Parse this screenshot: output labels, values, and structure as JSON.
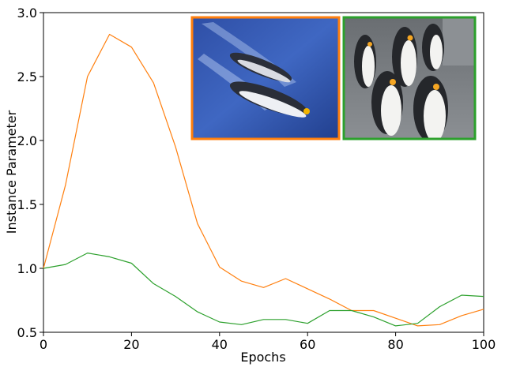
{
  "chart_data": {
    "type": "line",
    "xlabel": "Epochs",
    "ylabel": "Instance Parameter",
    "xlim": [
      0,
      100
    ],
    "ylim": [
      0.5,
      3.0
    ],
    "xticks": [
      0,
      20,
      40,
      60,
      80,
      100
    ],
    "yticks": [
      0.5,
      1.0,
      1.5,
      2.0,
      2.5,
      3.0
    ],
    "x": [
      0,
      5,
      10,
      15,
      20,
      25,
      30,
      35,
      40,
      45,
      50,
      55,
      60,
      65,
      70,
      75,
      80,
      85,
      90,
      95,
      100
    ],
    "series": [
      {
        "color": "#ff7f0e",
        "values": [
          1.0,
          1.65,
          2.5,
          2.83,
          2.73,
          2.45,
          1.95,
          1.35,
          1.01,
          0.9,
          0.85,
          0.92,
          0.84,
          0.76,
          0.67,
          0.67,
          0.61,
          0.55,
          0.56,
          0.63,
          0.68
        ]
      },
      {
        "color": "#2ca02c",
        "values": [
          1.0,
          1.03,
          1.12,
          1.09,
          1.04,
          0.88,
          0.78,
          0.66,
          0.58,
          0.56,
          0.6,
          0.6,
          0.57,
          0.67,
          0.67,
          0.62,
          0.55,
          0.57,
          0.7,
          0.79,
          0.78
        ]
      }
    ],
    "insets": [
      {
        "name": "swimming-penguins-photo",
        "border_color": "#ff7f0e"
      },
      {
        "name": "standing-penguins-photo",
        "border_color": "#2ca02c"
      }
    ]
  }
}
